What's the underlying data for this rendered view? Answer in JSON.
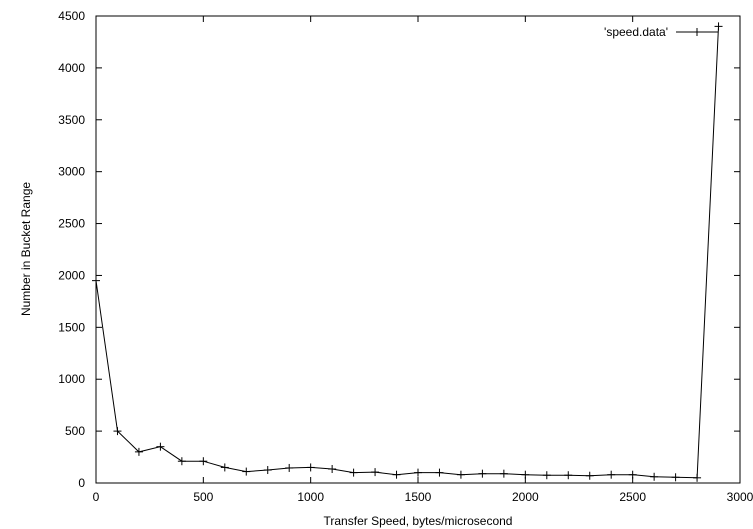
{
  "chart_data": {
    "type": "line",
    "xlabel": "Transfer Speed, bytes/microsecond",
    "ylabel": "Number in Bucket Range",
    "xlim": [
      0,
      3000
    ],
    "ylim": [
      0,
      4500
    ],
    "x_ticks": [
      0,
      500,
      1000,
      1500,
      2000,
      2500,
      3000
    ],
    "y_ticks": [
      0,
      500,
      1000,
      1500,
      2000,
      2500,
      3000,
      3500,
      4000,
      4500
    ],
    "x_tick_labels": [
      "0",
      "500",
      "1000",
      "1500",
      "2000",
      "2500",
      "3000"
    ],
    "y_tick_labels": [
      "0",
      "500",
      "1000",
      "1500",
      "2000",
      "2500",
      "3000",
      "3500",
      "4000",
      "4500"
    ],
    "grid": false,
    "legend_position": "top-right",
    "series": [
      {
        "name": "'speed.data'",
        "color": "#000000",
        "marker": "plus",
        "x": [
          0,
          100,
          200,
          300,
          400,
          500,
          600,
          700,
          800,
          900,
          1000,
          1100,
          1200,
          1300,
          1400,
          1500,
          1600,
          1700,
          1800,
          1900,
          2000,
          2100,
          2200,
          2300,
          2400,
          2500,
          2600,
          2700,
          2800,
          2900
        ],
        "y": [
          1950,
          500,
          300,
          350,
          210,
          210,
          150,
          110,
          125,
          145,
          150,
          135,
          100,
          105,
          80,
          100,
          100,
          80,
          90,
          90,
          80,
          75,
          75,
          70,
          80,
          80,
          60,
          55,
          50,
          4400
        ]
      }
    ]
  }
}
